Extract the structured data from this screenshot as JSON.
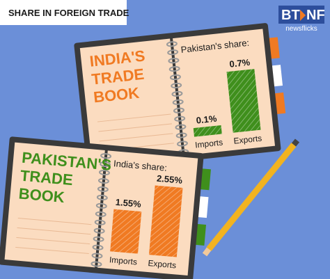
{
  "header": {
    "title": "SHARE IN FOREIGN TRADE",
    "logo_left": "BT",
    "logo_right": "NF",
    "logo_sub": "newsflicks"
  },
  "chart_data": [
    {
      "type": "bar",
      "book_title": [
        "INDIA'S",
        "TRADE",
        "BOOK"
      ],
      "title": "Pakistan's share:",
      "categories": [
        "Imports",
        "Exports"
      ],
      "values": [
        0.1,
        0.7
      ],
      "value_labels": [
        "0.1%",
        "0.7%"
      ],
      "color": "#3f8f1c"
    },
    {
      "type": "bar",
      "book_title": [
        "PAKISTAN'S",
        "TRADE",
        "BOOK"
      ],
      "title": "India's share:",
      "categories": [
        "Imports",
        "Exports"
      ],
      "values": [
        1.55,
        2.55
      ],
      "value_labels": [
        "1.55%",
        "2.55%"
      ],
      "color": "#f07a22"
    }
  ]
}
